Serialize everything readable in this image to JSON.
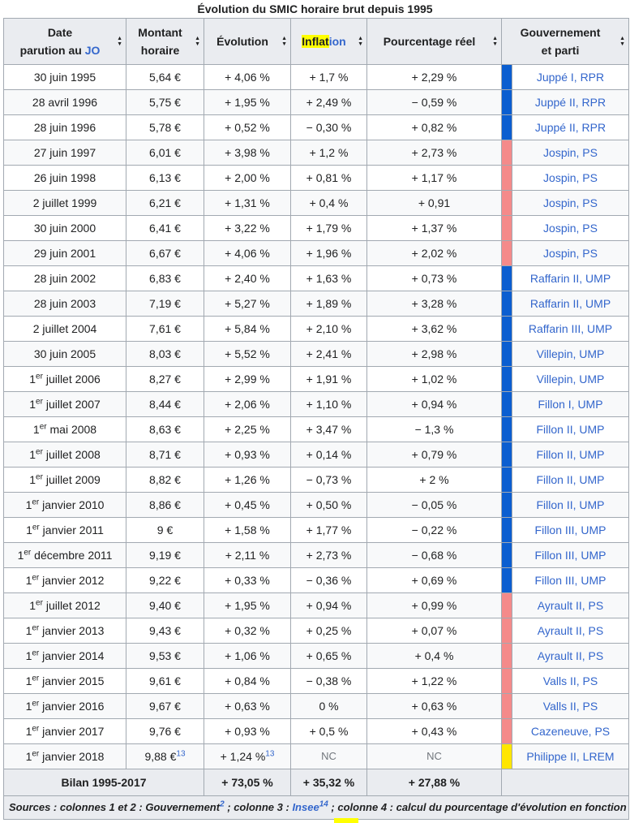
{
  "caption": "Évolution du SMIC horaire brut depuis 1995",
  "headers": {
    "date_line1": "Date",
    "date_line2_prefix": "parution au ",
    "date_line2_link": "JO",
    "montant_line1": "Montant",
    "montant_line2": "horaire",
    "evolution": "Évolution",
    "inflation_hl": "Inflat",
    "inflation_rest": "ion",
    "reel": "Pourcentage réel",
    "gov_line1": "Gouvernement",
    "gov_line2": "et parti"
  },
  "colors": {
    "droite": "#0b5ed0",
    "gauche": "#f48a8a",
    "lrem": "#ffe600"
  },
  "rows": [
    {
      "date": "30 juin 1995",
      "sup": "",
      "rest": "",
      "montant": "5,64 €",
      "evol": "+ 4,06 %",
      "infl": "+ 1,7 %",
      "reel": "+ 2,29 %",
      "gov": "Juppé I, RPR",
      "party": "droite"
    },
    {
      "date": "28 avril 1996",
      "sup": "",
      "rest": "",
      "montant": "5,75 €",
      "evol": "+ 1,95 %",
      "infl": "+ 2,49 %",
      "reel": "− 0,59 %",
      "gov": "Juppé II, RPR",
      "party": "droite"
    },
    {
      "date": "28 juin 1996",
      "sup": "",
      "rest": "",
      "montant": "5,78 €",
      "evol": "+ 0,52 %",
      "infl": "− 0,30 %",
      "reel": "+ 0,82 %",
      "gov": "Juppé II, RPR",
      "party": "droite"
    },
    {
      "date": "27 juin 1997",
      "sup": "",
      "rest": "",
      "montant": "6,01 €",
      "evol": "+ 3,98 %",
      "infl": "+ 1,2 %",
      "reel": "+ 2,73 %",
      "gov": "Jospin, PS",
      "party": "gauche"
    },
    {
      "date": "26 juin 1998",
      "sup": "",
      "rest": "",
      "montant": "6,13 €",
      "evol": "+ 2,00 %",
      "infl": "+ 0,81 %",
      "reel": "+ 1,17 %",
      "gov": "Jospin, PS",
      "party": "gauche"
    },
    {
      "date": "2 juillet 1999",
      "sup": "",
      "rest": "",
      "montant": "6,21 €",
      "evol": "+ 1,31 %",
      "infl": "+ 0,4 %",
      "reel": "+ 0,91",
      "gov": "Jospin, PS",
      "party": "gauche"
    },
    {
      "date": "30 juin 2000",
      "sup": "",
      "rest": "",
      "montant": "6,41 €",
      "evol": "+ 3,22 %",
      "infl": "+ 1,79 %",
      "reel": "+ 1,37 %",
      "gov": "Jospin, PS",
      "party": "gauche"
    },
    {
      "date": "29 juin 2001",
      "sup": "",
      "rest": "",
      "montant": "6,67 €",
      "evol": "+ 4,06 %",
      "infl": "+ 1,96 %",
      "reel": "+ 2,02 %",
      "gov": "Jospin, PS",
      "party": "gauche"
    },
    {
      "date": "28 juin 2002",
      "sup": "",
      "rest": "",
      "montant": "6,83 €",
      "evol": "+ 2,40 %",
      "infl": "+ 1,63 %",
      "reel": "+ 0,73 %",
      "gov": "Raffarin II, UMP",
      "party": "droite"
    },
    {
      "date": "28 juin 2003",
      "sup": "",
      "rest": "",
      "montant": "7,19 €",
      "evol": "+ 5,27 %",
      "infl": "+ 1,89 %",
      "reel": "+ 3,28 %",
      "gov": "Raffarin II, UMP",
      "party": "droite"
    },
    {
      "date": "2 juillet 2004",
      "sup": "",
      "rest": "",
      "montant": "7,61 €",
      "evol": "+ 5,84 %",
      "infl": "+ 2,10 %",
      "reel": "+ 3,62 %",
      "gov": "Raffarin III, UMP",
      "party": "droite"
    },
    {
      "date": "30 juin 2005",
      "sup": "",
      "rest": "",
      "montant": "8,03 €",
      "evol": "+ 5,52 %",
      "infl": "+ 2,41 %",
      "reel": "+ 2,98 %",
      "gov": "Villepin, UMP",
      "party": "droite"
    },
    {
      "date": "1",
      "sup": "er",
      "rest": " juillet 2006",
      "montant": "8,27 €",
      "evol": "+ 2,99 %",
      "infl": "+ 1,91 %",
      "reel": "+ 1,02 %",
      "gov": "Villepin, UMP",
      "party": "droite"
    },
    {
      "date": "1",
      "sup": "er",
      "rest": " juillet 2007",
      "montant": "8,44 €",
      "evol": "+ 2,06 %",
      "infl": "+ 1,10 %",
      "reel": "+ 0,94 %",
      "gov": "Fillon I, UMP",
      "party": "droite"
    },
    {
      "date": "1",
      "sup": "er",
      "rest": " mai 2008",
      "montant": "8,63 €",
      "evol": "+ 2,25 %",
      "infl": "+ 3,47 %",
      "reel": "− 1,3 %",
      "gov": "Fillon II, UMP",
      "party": "droite"
    },
    {
      "date": "1",
      "sup": "er",
      "rest": " juillet 2008",
      "montant": "8,71 €",
      "evol": "+ 0,93 %",
      "infl": "+ 0,14 %",
      "reel": "+ 0,79 %",
      "gov": "Fillon II, UMP",
      "party": "droite"
    },
    {
      "date": "1",
      "sup": "er",
      "rest": " juillet 2009",
      "montant": "8,82 €",
      "evol": "+ 1,26 %",
      "infl": "− 0,73 %",
      "reel": "+ 2 %",
      "gov": "Fillon II, UMP",
      "party": "droite"
    },
    {
      "date": "1",
      "sup": "er",
      "rest": " janvier 2010",
      "montant": "8,86 €",
      "evol": "+ 0,45 %",
      "infl": "+ 0,50 %",
      "reel": "− 0,05 %",
      "gov": "Fillon II, UMP",
      "party": "droite"
    },
    {
      "date": "1",
      "sup": "er",
      "rest": " janvier 2011",
      "montant": "9 €",
      "evol": "+ 1,58 %",
      "infl": "+ 1,77 %",
      "reel": "− 0,22 %",
      "gov": "Fillon III, UMP",
      "party": "droite"
    },
    {
      "date": "1",
      "sup": "er",
      "rest": " décembre 2011",
      "montant": "9,19 €",
      "evol": "+ 2,11 %",
      "infl": "+ 2,73 %",
      "reel": "− 0,68 %",
      "gov": "Fillon III, UMP",
      "party": "droite"
    },
    {
      "date": "1",
      "sup": "er",
      "rest": " janvier 2012",
      "montant": "9,22 €",
      "evol": "+ 0,33 %",
      "infl": "− 0,36 %",
      "reel": "+ 0,69 %",
      "gov": "Fillon III, UMP",
      "party": "droite"
    },
    {
      "date": "1",
      "sup": "er",
      "rest": " juillet 2012",
      "montant": "9,40 €",
      "evol": "+ 1,95 %",
      "infl": "+ 0,94 %",
      "reel": "+ 0,99 %",
      "gov": "Ayrault II, PS",
      "party": "gauche"
    },
    {
      "date": "1",
      "sup": "er",
      "rest": " janvier 2013",
      "montant": "9,43 €",
      "evol": "+ 0,32 %",
      "infl": "+ 0,25 %",
      "reel": "+ 0,07 %",
      "gov": "Ayrault II, PS",
      "party": "gauche"
    },
    {
      "date": "1",
      "sup": "er",
      "rest": " janvier 2014",
      "montant": "9,53 €",
      "evol": "+ 1,06 %",
      "infl": "+ 0,65 %",
      "reel": "+ 0,4 %",
      "gov": "Ayrault II, PS",
      "party": "gauche"
    },
    {
      "date": "1",
      "sup": "er",
      "rest": " janvier 2015",
      "montant": "9,61 €",
      "evol": "+ 0,84 %",
      "infl": "− 0,38 %",
      "reel": "+ 1,22 %",
      "gov": "Valls II, PS",
      "party": "gauche"
    },
    {
      "date": "1",
      "sup": "er",
      "rest": " janvier 2016",
      "montant": "9,67 €",
      "evol": "+ 0,63 %",
      "infl": "0 %",
      "reel": "+ 0,63 %",
      "gov": "Valls II, PS",
      "party": "gauche"
    },
    {
      "date": "1",
      "sup": "er",
      "rest": " janvier 2017",
      "montant": "9,76 €",
      "evol": "+ 0,93 %",
      "infl": "+ 0,5 %",
      "reel": "+ 0,43 %",
      "gov": "Cazeneuve, PS",
      "party": "gauche"
    }
  ],
  "last_row": {
    "date": "1",
    "sup": "er",
    "rest": " janvier 2018",
    "montant": "9,88 €",
    "montant_ref": "13",
    "evol": "+ 1,24 %",
    "evol_ref": "13",
    "infl": "NC",
    "reel": "NC",
    "gov": "Philippe II, LREM",
    "party": "lrem"
  },
  "bilan": {
    "label": "Bilan 1995-2017",
    "evol": "+ 73,05 %",
    "infl": "+ 35,32 %",
    "reel": "+ 27,88 %"
  },
  "sources": {
    "part1": "Sources : colonnes 1 et 2 : Gouvernement",
    "ref1": "2",
    "part2": " ; colonne 3 : ",
    "link": "Insee",
    "ref2": "14",
    "part3": " ; colonne 4 : calcul du pourcentage d'évolution en fonction"
  }
}
